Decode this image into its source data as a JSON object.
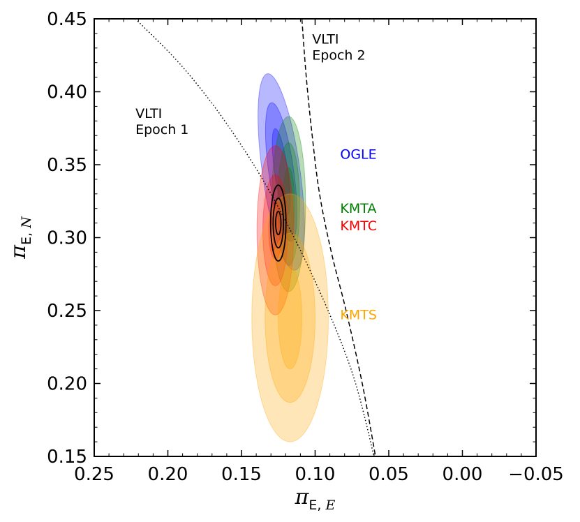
{
  "chart_data": {
    "type": "scatter",
    "xlabel": {
      "main": "π",
      "sub_a": "E, ",
      "sub_b": "E"
    },
    "ylabel": {
      "main": "π",
      "sub_a": "E, ",
      "sub_b": "N"
    },
    "xlim": [
      0.25,
      -0.05
    ],
    "ylim": [
      0.15,
      0.45
    ],
    "x_inverted": true,
    "xticks": [
      0.25,
      0.2,
      0.15,
      0.1,
      0.05,
      0.0,
      -0.05
    ],
    "xtick_labels": [
      "0.25",
      "0.20",
      "0.15",
      "0.10",
      "0.05",
      "0.00",
      "−0.05"
    ],
    "yticks": [
      0.15,
      0.2,
      0.25,
      0.3,
      0.35,
      0.4,
      0.45
    ],
    "ytick_labels": [
      "0.15",
      "0.20",
      "0.25",
      "0.30",
      "0.35",
      "0.40",
      "0.45"
    ],
    "grid": false,
    "series": [
      {
        "name": "OGLE",
        "color": "#0000ff",
        "center": [
          0.123,
          0.345
        ],
        "sigma_x": [
          0.0045,
          0.0085,
          0.0128
        ],
        "sigma_y": [
          0.03,
          0.048,
          0.068
        ],
        "rotation_deg": -8
      },
      {
        "name": "KMTA",
        "color": "#008000",
        "center": [
          0.118,
          0.323
        ],
        "sigma_x": [
          0.004,
          0.0075,
          0.0115
        ],
        "sigma_y": [
          0.025,
          0.042,
          0.06
        ],
        "rotation_deg": 0
      },
      {
        "name": "KMTC",
        "color": "#ff0000",
        "center": [
          0.127,
          0.305
        ],
        "sigma_x": [
          0.0045,
          0.0085,
          0.0125
        ],
        "sigma_y": [
          0.02,
          0.038,
          0.058
        ],
        "rotation_deg": 0
      },
      {
        "name": "KMTS",
        "color": "#ffa500",
        "center": [
          0.117,
          0.245
        ],
        "sigma_x": [
          0.008,
          0.017,
          0.026
        ],
        "sigma_y": [
          0.035,
          0.058,
          0.085
        ],
        "rotation_deg": 0
      }
    ],
    "combined_contours": {
      "color": "#000000",
      "center": [
        0.125,
        0.31
      ],
      "sigma_x": [
        0.0018,
        0.0035,
        0.0052
      ],
      "sigma_y": [
        0.008,
        0.017,
        0.026
      ]
    },
    "lines": [
      {
        "name": "VLTI Epoch 1",
        "style": "dotted",
        "x": [
          0.222,
          0.19,
          0.16,
          0.13,
          0.1,
          0.075,
          0.06
        ],
        "y": [
          0.45,
          0.417,
          0.378,
          0.33,
          0.27,
          0.208,
          0.15
        ]
      },
      {
        "name": "VLTI Epoch 2",
        "style": "dashed",
        "x": [
          0.109,
          0.106,
          0.102,
          0.097,
          0.089,
          0.079,
          0.068,
          0.059
        ],
        "y": [
          0.45,
          0.41,
          0.37,
          0.33,
          0.29,
          0.25,
          0.2,
          0.15
        ]
      }
    ],
    "annotations": [
      {
        "text": "VLTI",
        "x": 0.222,
        "y": 0.382,
        "color": "#000000"
      },
      {
        "text": "Epoch 1",
        "x": 0.222,
        "y": 0.371,
        "color": "#000000"
      },
      {
        "text": "VLTI",
        "x": 0.102,
        "y": 0.433,
        "color": "#000000"
      },
      {
        "text": "Epoch 2",
        "x": 0.102,
        "y": 0.422,
        "color": "#000000"
      },
      {
        "text": "OGLE",
        "x": 0.083,
        "y": 0.354,
        "color": "#0000ff"
      },
      {
        "text": "KMTA",
        "x": 0.083,
        "y": 0.317,
        "color": "#008000"
      },
      {
        "text": "KMTC",
        "x": 0.083,
        "y": 0.305,
        "color": "#ff0000"
      },
      {
        "text": "KMTS",
        "x": 0.083,
        "y": 0.244,
        "color": "#ffa500"
      }
    ]
  }
}
